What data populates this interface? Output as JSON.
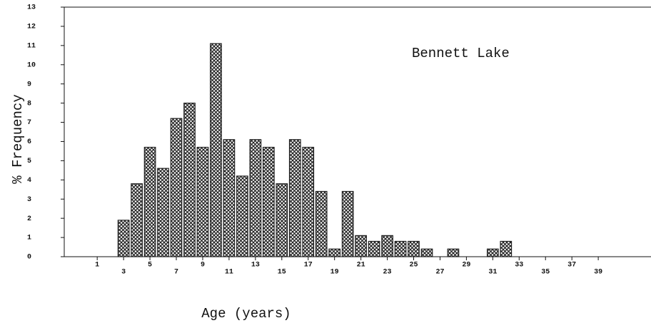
{
  "chart_data": {
    "type": "bar",
    "annotation": "Bennett Lake",
    "xlabel": "Age (years)",
    "ylabel": "% Frequency",
    "x": [
      3,
      4,
      5,
      6,
      7,
      8,
      9,
      10,
      11,
      12,
      13,
      14,
      15,
      16,
      17,
      18,
      19,
      20,
      21,
      22,
      23,
      24,
      25,
      26,
      28,
      31,
      32
    ],
    "values": [
      1.9,
      3.8,
      5.7,
      4.6,
      7.2,
      8.0,
      5.7,
      11.1,
      6.1,
      4.2,
      6.1,
      5.7,
      3.8,
      6.1,
      5.7,
      3.4,
      0.4,
      3.4,
      1.1,
      0.8,
      1.1,
      0.8,
      0.8,
      0.4,
      0.4,
      0.4,
      0.8
    ],
    "color": "#222",
    "xlim": [
      -1.5,
      43
    ],
    "xticks": [
      1,
      3,
      5,
      7,
      9,
      11,
      13,
      15,
      17,
      19,
      21,
      23,
      25,
      27,
      29,
      31,
      33,
      35,
      37,
      39
    ],
    "ylim": [
      0,
      13
    ],
    "yticks": [
      0,
      1,
      2,
      3,
      4,
      5,
      6,
      7,
      8,
      9,
      10,
      11,
      12,
      13
    ]
  }
}
